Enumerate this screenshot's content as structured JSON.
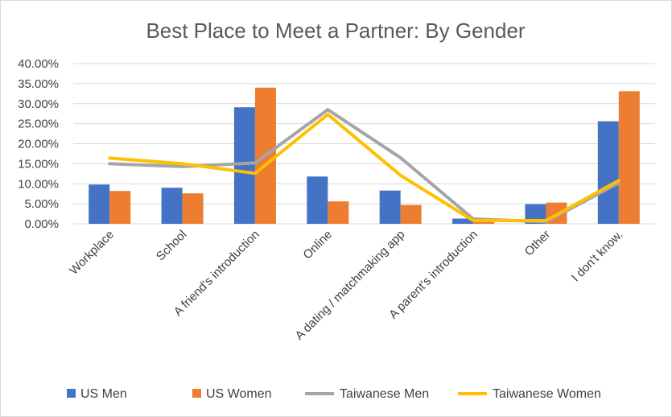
{
  "chart_data": {
    "type": "bar",
    "title": "Best Place to Meet a Partner: By Gender",
    "xlabel": "",
    "ylabel": "",
    "categories": [
      "Workplace",
      "School",
      "A friend's introduction",
      "Online",
      "A dating / matchmaking app",
      "A parent's introduction",
      "Other",
      "I don't know."
    ],
    "ylim": [
      0,
      0.4
    ],
    "yticks": [
      "0.00%",
      "5.00%",
      "10.00%",
      "15.00%",
      "20.00%",
      "25.00%",
      "30.00%",
      "35.00%",
      "40.00%"
    ],
    "grid": true,
    "legend_position": "bottom",
    "series": [
      {
        "name": "US Men",
        "kind": "bar",
        "color": "#4472C4",
        "values": [
          0.098,
          0.09,
          0.291,
          0.118,
          0.083,
          0.013,
          0.049,
          0.256
        ]
      },
      {
        "name": "US Women",
        "kind": "bar",
        "color": "#ED7D31",
        "values": [
          0.082,
          0.076,
          0.34,
          0.056,
          0.047,
          0.013,
          0.053,
          0.331
        ]
      },
      {
        "name": "Taiwanese Men",
        "kind": "line",
        "color": "#A5A5A5",
        "values": [
          0.15,
          0.143,
          0.152,
          0.285,
          0.165,
          0.012,
          0.005,
          0.102
        ]
      },
      {
        "name": "Taiwanese Women",
        "kind": "line",
        "color": "#FFC000",
        "values": [
          0.164,
          0.15,
          0.126,
          0.273,
          0.121,
          0.008,
          0.008,
          0.108
        ]
      }
    ]
  }
}
